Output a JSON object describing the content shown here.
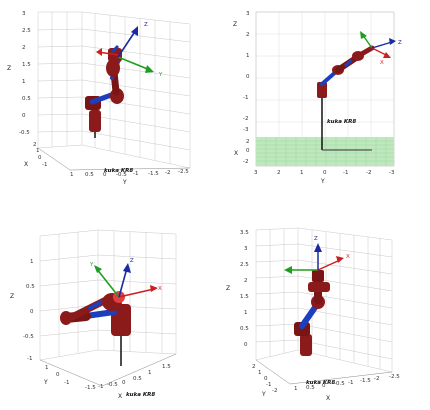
{
  "robot_label": "kuka KR8",
  "frame_labels": {
    "x": "X",
    "y": "Y",
    "z": "Z"
  },
  "colors": {
    "link": "#8b1a1a",
    "link_dark": "#5e0f0f",
    "joint_blue": "#1c3fbf",
    "frame_x": "#cc2020",
    "frame_y": "#1e9e1e",
    "frame_z": "#1a2aa0",
    "base": "#111111",
    "ground": "#bfe8bf"
  },
  "panels": [
    {
      "id": "top-left",
      "axes": [
        {
          "label": "Z",
          "ticks": [
            "3",
            "2.5",
            "2",
            "1.5",
            "1",
            "0.5",
            "0",
            "-0.5"
          ]
        },
        {
          "label": "X",
          "ticks": [
            "2",
            "1",
            "0",
            "-1"
          ]
        },
        {
          "label": "Y",
          "ticks": [
            "1",
            "0.5",
            "0",
            "-0.5",
            "-1",
            "-1.5",
            "-2",
            "-2.5"
          ]
        }
      ]
    },
    {
      "id": "top-right",
      "axes": [
        {
          "label": "Z",
          "ticks": [
            "3",
            "2",
            "1",
            "0",
            "-1",
            "-2",
            "-3"
          ]
        },
        {
          "label": "X",
          "ticks": [
            "2",
            "0",
            "-2"
          ]
        },
        {
          "label": "Y",
          "ticks": [
            "3",
            "2",
            "1",
            "0",
            "-1",
            "-2",
            "-3"
          ]
        }
      ]
    },
    {
      "id": "bottom-left",
      "axes": [
        {
          "label": "Z",
          "ticks": [
            "1",
            "0.5",
            "0",
            "-0.5",
            "-1"
          ]
        },
        {
          "label": "Y",
          "ticks": [
            "1",
            "0",
            "-1"
          ]
        },
        {
          "label": "X",
          "ticks": [
            "-1.5",
            "-1",
            "-0.5",
            "0",
            "0.5",
            "1",
            "1.5"
          ]
        }
      ]
    },
    {
      "id": "bottom-right",
      "axes": [
        {
          "label": "Z",
          "ticks": [
            "3.5",
            "3",
            "2.5",
            "2",
            "1.5",
            "1",
            "0.5",
            "0"
          ]
        },
        {
          "label": "Y",
          "ticks": [
            "2",
            "1",
            "0",
            "-1",
            "-2"
          ]
        },
        {
          "label": "X",
          "ticks": [
            "1",
            "0.5",
            "0",
            "-0.5",
            "-1",
            "-1.5",
            "-2",
            "-2.5"
          ]
        }
      ]
    }
  ]
}
